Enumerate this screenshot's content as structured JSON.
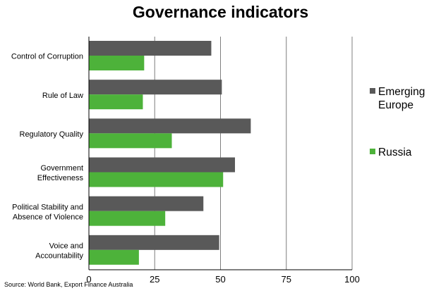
{
  "chart_data": {
    "type": "bar",
    "orientation": "horizontal",
    "title": "Governance indicators",
    "categories": [
      [
        "Control of Corruption"
      ],
      [
        "Rule of Law"
      ],
      [
        "Regulatory Quality"
      ],
      [
        "Government",
        "Effectiveness"
      ],
      [
        "Political Stability and",
        "Absence of Violence"
      ],
      [
        "Voice and",
        "Accountability"
      ]
    ],
    "series": [
      {
        "name": "Emerging Europe",
        "legend_lines": [
          "Emerging",
          "Europe"
        ],
        "color": "#595959",
        "values": [
          46.5,
          50.5,
          61.5,
          55.5,
          43.5,
          49.5
        ]
      },
      {
        "name": "Russia",
        "legend_lines": [
          "Russia"
        ],
        "color": "#4db23a",
        "values": [
          21,
          20.5,
          31.5,
          51,
          29,
          19
        ]
      }
    ],
    "xlim": [
      0,
      100
    ],
    "xticks": [
      0,
      25,
      50,
      75,
      100
    ],
    "grid": "vertical",
    "legend_position": "right"
  },
  "source": "Source: World Bank, Export Finance Australia"
}
